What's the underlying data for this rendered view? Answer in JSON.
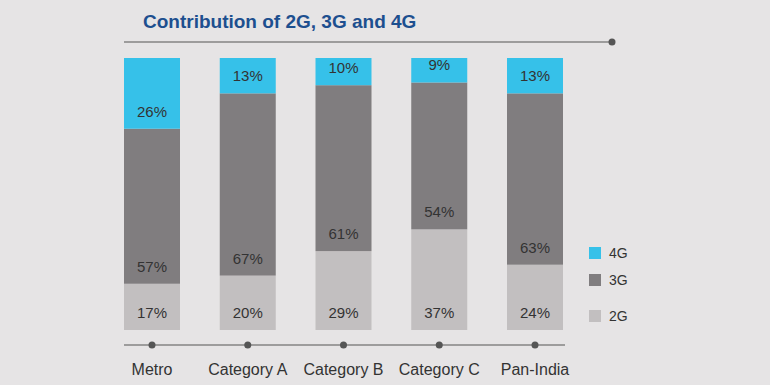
{
  "chart_data": {
    "type": "bar",
    "title": "Contribution of 2G, 3G and 4G",
    "categories": [
      "Metro",
      "Category A",
      "Category B",
      "Category C",
      "Pan-India"
    ],
    "stacked": true,
    "data_labels": true,
    "tick_labels": "x",
    "legend": "right",
    "ylim": [
      0,
      100
    ],
    "series": [
      {
        "name": "2G",
        "color": "#c2bfc0",
        "values": [
          17,
          20,
          29,
          37,
          24
        ],
        "value_labels": [
          "17%",
          "20%",
          "29%",
          "37%",
          "24%"
        ]
      },
      {
        "name": "3G",
        "color": "#807d7f",
        "values": [
          57,
          67,
          61,
          54,
          63
        ],
        "value_labels": [
          "57%",
          "67%",
          "61%",
          "54%",
          "63%"
        ]
      },
      {
        "name": "4G",
        "color": "#36c1e9",
        "values": [
          26,
          13,
          10,
          9,
          13
        ],
        "value_labels": [
          "26%",
          "13%",
          "10%",
          "9%",
          "13%"
        ]
      }
    ]
  }
}
